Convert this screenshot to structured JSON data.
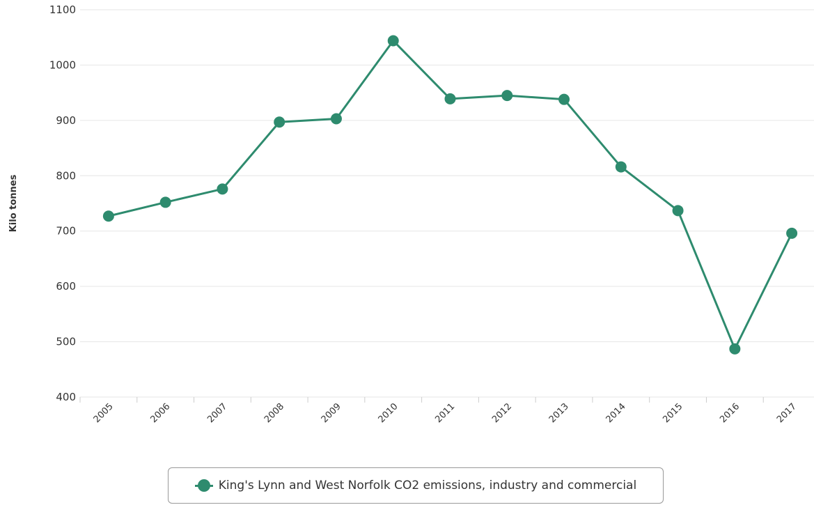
{
  "chart_data": {
    "type": "line",
    "title": "",
    "xlabel": "",
    "ylabel": "Kilo tonnes",
    "ylim": [
      400,
      1100
    ],
    "yticks": [
      400,
      500,
      600,
      700,
      800,
      900,
      1000,
      1100
    ],
    "categories": [
      "2005",
      "2006",
      "2007",
      "2008",
      "2009",
      "2010",
      "2011",
      "2012",
      "2013",
      "2014",
      "2015",
      "2016",
      "2017"
    ],
    "series": [
      {
        "name": "King's Lynn and West Norfolk CO2 emissions, industry and commercial",
        "color": "#2e8b6e",
        "values": [
          727,
          752,
          776,
          897,
          903,
          1044,
          939,
          945,
          938,
          816,
          737,
          487,
          696
        ]
      }
    ],
    "grid": true,
    "legend": "bottom-center"
  }
}
